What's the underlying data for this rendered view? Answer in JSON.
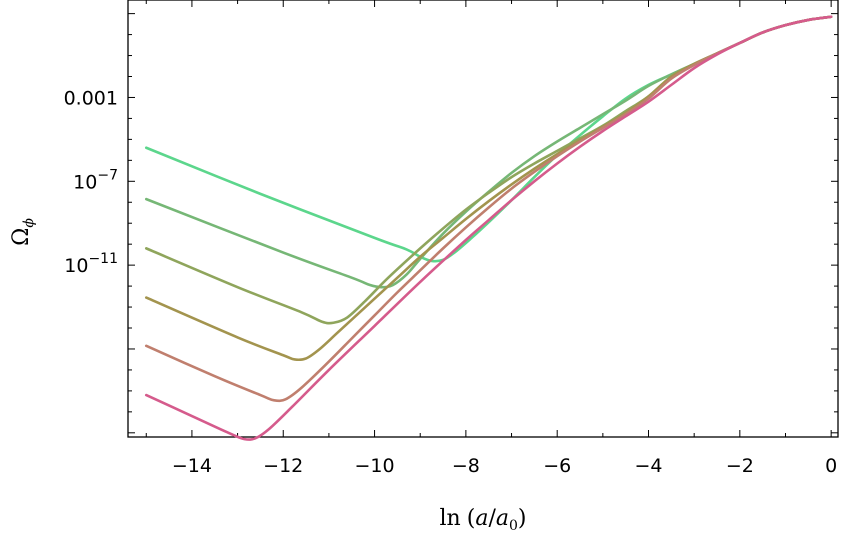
{
  "chart_data": {
    "type": "line",
    "xlabel": {
      "pre": "ln",
      "open": "(",
      "a": "a",
      "slash": "/",
      "a0": "a",
      "sub": "0",
      "close": ")"
    },
    "ylabel": {
      "main": "Ω",
      "sub": "ϕ"
    },
    "x_ticks": [
      {
        "value": -14,
        "label": "−14"
      },
      {
        "value": -12,
        "label": "−12"
      },
      {
        "value": -10,
        "label": "−10"
      },
      {
        "value": -8,
        "label": "−8"
      },
      {
        "value": -6,
        "label": "−6"
      },
      {
        "value": -4,
        "label": "−4"
      },
      {
        "value": -2,
        "label": "−2"
      },
      {
        "value": 0,
        "label": "0"
      }
    ],
    "y_ticks": [
      {
        "value": -3,
        "base": "0.001",
        "exp": ""
      },
      {
        "value": -7,
        "base": "10",
        "exp": "−7"
      },
      {
        "value": -11,
        "base": "10",
        "exp": "−11"
      }
    ],
    "xlim": [
      -15.4,
      0.15
    ],
    "ylim_log10": [
      -19.2,
      1.65
    ],
    "y_scale": "log",
    "grid": false,
    "series": [
      {
        "color": "#5cd68c",
        "x": [
          -15,
          -12.5,
          -10,
          -9.3,
          -9.0,
          -8.75,
          -8.5,
          -8.25,
          -7.9,
          -7.5,
          -7.0,
          -6.5,
          -6.0,
          -5.5,
          -5.0,
          -4.5,
          -4.0,
          -3.5,
          -3.0,
          -2.5,
          -2.0,
          -1.5,
          -1.0,
          -0.5,
          0
        ],
        "logy": [
          -5.4,
          -7.6,
          -9.7,
          -10.25,
          -10.6,
          -10.8,
          -10.75,
          -10.4,
          -9.75,
          -8.95,
          -7.9,
          -6.8,
          -5.75,
          -4.8,
          -3.9,
          -3.05,
          -2.4,
          -1.9,
          -1.4,
          -0.9,
          -0.4,
          0.1,
          0.45,
          0.7,
          0.85
        ]
      },
      {
        "color": "#76b776",
        "x": [
          -15,
          -12,
          -10.5,
          -10.1,
          -9.85,
          -9.6,
          -9.3,
          -9.0,
          -8.5,
          -8.0,
          -7.5,
          -7.0,
          -6.5,
          -6.0,
          -5.5,
          -5.0,
          -4.5,
          -4.0,
          -3.5,
          -3.0,
          -2.5,
          -2.0,
          -1.5,
          -1.0,
          -0.5,
          0
        ],
        "logy": [
          -7.85,
          -10.4,
          -11.6,
          -11.95,
          -12.05,
          -11.95,
          -11.45,
          -10.7,
          -9.5,
          -8.45,
          -7.5,
          -6.6,
          -5.8,
          -5.1,
          -4.45,
          -3.8,
          -3.15,
          -2.45,
          -1.9,
          -1.4,
          -0.9,
          -0.4,
          0.1,
          0.45,
          0.7,
          0.85
        ]
      },
      {
        "color": "#8fa55c",
        "x": [
          -15,
          -13,
          -11.6,
          -11.15,
          -10.9,
          -10.6,
          -10.2,
          -9.7,
          -9.0,
          -8.5,
          -8.0,
          -7.5,
          -7.0,
          -6.5,
          -6.0,
          -5.5,
          -5.0,
          -4.5,
          -4.0,
          -3.5,
          -3.0,
          -2.5,
          -2.0,
          -1.5,
          -1.0,
          -0.5,
          0
        ],
        "logy": [
          -10.2,
          -12.05,
          -13.25,
          -13.7,
          -13.75,
          -13.5,
          -12.7,
          -11.6,
          -10.2,
          -9.25,
          -8.35,
          -7.55,
          -6.8,
          -6.15,
          -5.55,
          -4.95,
          -4.35,
          -3.65,
          -2.95,
          -2.0,
          -1.4,
          -0.9,
          -0.4,
          0.1,
          0.45,
          0.7,
          0.85
        ]
      },
      {
        "color": "#a3944e",
        "x": [
          -15,
          -13,
          -12.0,
          -11.75,
          -11.5,
          -11.2,
          -10.8,
          -10.2,
          -9.5,
          -9.0,
          -8.5,
          -8.0,
          -7.5,
          -7.0,
          -6.5,
          -6.0,
          -5.5,
          -5.0,
          -4.5,
          -4.0,
          -3.5,
          -3.0,
          -2.5,
          -2.0,
          -1.5,
          -1.0,
          -0.5,
          0
        ],
        "logy": [
          -12.55,
          -14.45,
          -15.3,
          -15.5,
          -15.45,
          -15.0,
          -14.2,
          -13.0,
          -11.6,
          -10.6,
          -9.7,
          -8.8,
          -7.95,
          -7.15,
          -6.4,
          -5.7,
          -5.05,
          -4.4,
          -3.75,
          -2.95,
          -2.0,
          -1.4,
          -0.9,
          -0.4,
          0.1,
          0.45,
          0.7,
          0.85
        ]
      },
      {
        "color": "#c07f6e",
        "x": [
          -15,
          -13.5,
          -12.5,
          -12.2,
          -11.95,
          -11.6,
          -11.0,
          -10.5,
          -10.0,
          -9.5,
          -9.0,
          -8.5,
          -8.0,
          -7.5,
          -7.0,
          -6.5,
          -6.0,
          -5.5,
          -5.0,
          -4.5,
          -4.0,
          -3.5,
          -3.0,
          -2.5,
          -2.0,
          -1.5,
          -1.0,
          -0.5,
          0
        ],
        "logy": [
          -14.85,
          -16.3,
          -17.2,
          -17.45,
          -17.4,
          -16.85,
          -15.6,
          -14.5,
          -13.4,
          -12.3,
          -11.25,
          -10.2,
          -9.2,
          -8.25,
          -7.35,
          -6.55,
          -5.8,
          -5.1,
          -4.45,
          -3.8,
          -3.05,
          -2.1,
          -1.45,
          -0.9,
          -0.4,
          0.1,
          0.45,
          0.7,
          0.85
        ]
      },
      {
        "color": "#d55b8c",
        "x": [
          -15,
          -14,
          -13.2,
          -12.85,
          -12.6,
          -12.3,
          -11.8,
          -11.0,
          -10.0,
          -9.0,
          -8.0,
          -7.5,
          -7.0,
          -6.5,
          -6.0,
          -5.5,
          -5.0,
          -4.5,
          -4.0,
          -3.5,
          -3.0,
          -2.5,
          -2.0,
          -1.5,
          -1.0,
          -0.5,
          0
        ],
        "logy": [
          -17.2,
          -18.2,
          -19.0,
          -19.3,
          -19.25,
          -18.8,
          -17.75,
          -16.0,
          -13.9,
          -11.8,
          -9.8,
          -8.85,
          -7.9,
          -7.0,
          -6.15,
          -5.35,
          -4.6,
          -3.9,
          -3.2,
          -2.4,
          -1.6,
          -0.95,
          -0.4,
          0.1,
          0.45,
          0.7,
          0.85
        ]
      }
    ]
  }
}
